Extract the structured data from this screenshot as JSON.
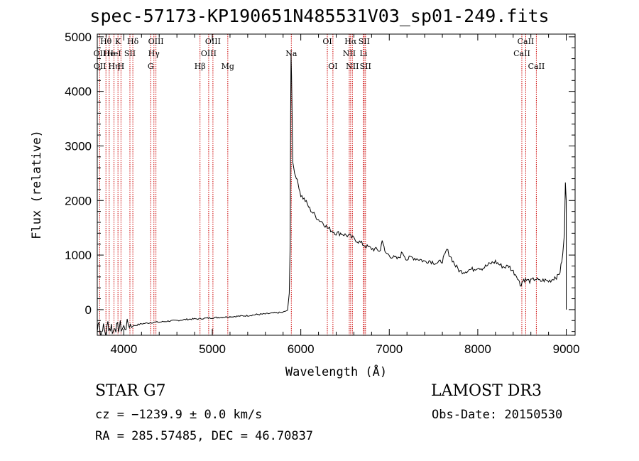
{
  "chart_data": {
    "type": "line",
    "title": "spec-57173-KP190651N485531V03_sp01-249.fits",
    "xlabel": "Wavelength (Å)",
    "ylabel": "Flux (relative)",
    "xlim": [
      3700,
      9100
    ],
    "ylim": [
      -470,
      5050
    ],
    "xticks": [
      4000,
      5000,
      6000,
      7000,
      8000,
      9000
    ],
    "yticks": [
      0,
      1000,
      2000,
      3000,
      4000,
      5000
    ],
    "series": [
      {
        "name": "flux",
        "x": [
          3700,
          3720,
          3740,
          3760,
          3780,
          3800,
          3820,
          3840,
          3860,
          3880,
          3900,
          3920,
          3940,
          3960,
          3980,
          4000,
          4050,
          4100,
          4150,
          4200,
          4250,
          4300,
          4350,
          4400,
          4450,
          4500,
          4600,
          4700,
          4800,
          4850,
          4900,
          5000,
          5100,
          5200,
          5300,
          5400,
          5500,
          5600,
          5700,
          5800,
          5850,
          5870,
          5880,
          5885,
          5890,
          5895,
          5900,
          5905,
          5910,
          5920,
          5930,
          5950,
          5980,
          6000,
          6050,
          6100,
          6150,
          6200,
          6250,
          6300,
          6350,
          6400,
          6450,
          6500,
          6550,
          6600,
          6650,
          6700,
          6750,
          6800,
          6850,
          6900,
          6920,
          6950,
          7000,
          7050,
          7100,
          7150,
          7200,
          7250,
          7300,
          7350,
          7400,
          7450,
          7500,
          7550,
          7600,
          7630,
          7650,
          7700,
          7750,
          7800,
          7850,
          7900,
          7950,
          8000,
          8050,
          8100,
          8150,
          8200,
          8250,
          8300,
          8350,
          8400,
          8450,
          8480,
          8500,
          8520,
          8550,
          8600,
          8650,
          8700,
          8750,
          8800,
          8850,
          8870,
          8900,
          8930,
          8960,
          8980,
          8990,
          9000
        ],
        "y": [
          -400,
          -150,
          -500,
          -300,
          -380,
          -450,
          -250,
          -350,
          -300,
          -420,
          -280,
          -350,
          -330,
          -300,
          -350,
          -330,
          -260,
          -300,
          -280,
          -260,
          -250,
          -240,
          -230,
          -230,
          -220,
          -210,
          -200,
          -180,
          -170,
          -170,
          -160,
          -150,
          -140,
          -130,
          -120,
          -110,
          -90,
          -80,
          -60,
          -50,
          -10,
          300,
          1200,
          3500,
          4700,
          4300,
          3800,
          3200,
          2700,
          2600,
          2500,
          2400,
          2250,
          2100,
          2000,
          1850,
          1750,
          1650,
          1600,
          1500,
          1450,
          1400,
          1400,
          1370,
          1350,
          1300,
          1250,
          1200,
          1150,
          1120,
          1100,
          1080,
          1300,
          1050,
          1000,
          950,
          930,
          1050,
          920,
          960,
          940,
          920,
          880,
          900,
          870,
          850,
          900,
          1000,
          1100,
          950,
          800,
          700,
          700,
          730,
          740,
          780,
          760,
          800,
          850,
          880,
          820,
          780,
          800,
          700,
          600,
          450,
          500,
          550,
          540,
          520,
          570,
          520,
          540,
          520,
          560,
          600,
          600,
          700,
          1000,
          1400,
          2300,
          2000
        ],
        "color": "#000000"
      }
    ],
    "annotations": [
      {
        "label": "Hθ",
        "x": 3798,
        "row": 1
      },
      {
        "label": "OII",
        "x": 3727,
        "row": 2
      },
      {
        "label": "OII",
        "x": 3729,
        "row": 3
      },
      {
        "label": "He",
        "x": 3835,
        "row": 2
      },
      {
        "label": "Hη",
        "x": 3889,
        "row": 3
      },
      {
        "label": "K",
        "x": 3934,
        "row": 1
      },
      {
        "label": "HeI",
        "x": 3889,
        "row": 2
      },
      {
        "label": "H",
        "x": 3968,
        "row": 3
      },
      {
        "label": "SII",
        "x": 4069,
        "row": 2
      },
      {
        "label": "Hδ",
        "x": 4102,
        "row": 1
      },
      {
        "label": "OIII",
        "x": 4363,
        "row": 1
      },
      {
        "label": "Hγ",
        "x": 4340,
        "row": 2
      },
      {
        "label": "G",
        "x": 4304,
        "row": 3
      },
      {
        "label": "Hβ",
        "x": 4861,
        "row": 3
      },
      {
        "label": "OIII",
        "x": 5007,
        "row": 1
      },
      {
        "label": "OIII",
        "x": 4959,
        "row": 2
      },
      {
        "label": "Mg",
        "x": 5175,
        "row": 3
      },
      {
        "label": "Na",
        "x": 5893,
        "row": 2
      },
      {
        "label": "OI",
        "x": 6300,
        "row": 1
      },
      {
        "label": "OI",
        "x": 6363,
        "row": 3
      },
      {
        "label": "Hα",
        "x": 6563,
        "row": 1
      },
      {
        "label": "NII",
        "x": 6548,
        "row": 2
      },
      {
        "label": "NII",
        "x": 6583,
        "row": 3
      },
      {
        "label": "SII",
        "x": 6716,
        "row": 1
      },
      {
        "label": "Li",
        "x": 6708,
        "row": 2
      },
      {
        "label": "SII",
        "x": 6731,
        "row": 3
      },
      {
        "label": "CaII",
        "x": 8542,
        "row": 1
      },
      {
        "label": "CaII",
        "x": 8498,
        "row": 2
      },
      {
        "label": "CaII",
        "x": 8662,
        "row": 3
      }
    ],
    "line_positions": [
      3727,
      3798,
      3835,
      3889,
      3934,
      3968,
      4069,
      4102,
      4304,
      4340,
      4363,
      4861,
      4959,
      5007,
      5175,
      5893,
      6300,
      6363,
      6548,
      6563,
      6583,
      6708,
      6716,
      6731,
      8498,
      8542,
      8662
    ],
    "line_color": "#cc0000"
  },
  "info": {
    "object_class": "STAR    G7",
    "survey": "LAMOST DR3",
    "cz": "cz = −1239.9 ± 0.0 km/s",
    "obs_date": "Obs-Date: 20150530",
    "ra_dec": "RA = 285.57485, DEC =  46.70837"
  }
}
